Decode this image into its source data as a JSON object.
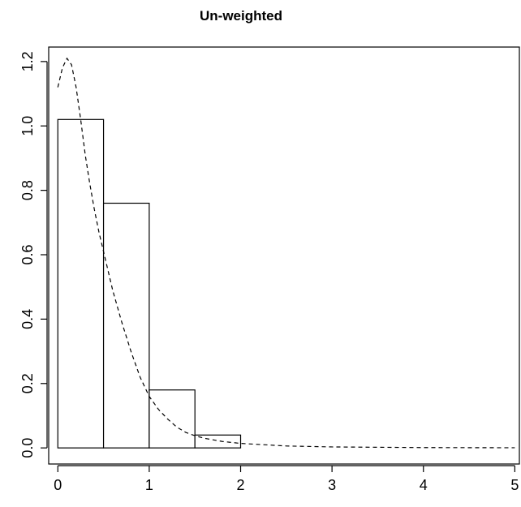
{
  "chart_data": {
    "type": "bar",
    "subtype": "histogram",
    "title": "Un-weighted",
    "xlabel": "",
    "ylabel": "",
    "xlim": [
      -0.1,
      5.05
    ],
    "ylim": [
      -0.05,
      1.245
    ],
    "x_ticks": [
      0,
      1,
      2,
      3,
      4,
      5
    ],
    "x_tick_labels": [
      "0",
      "1",
      "2",
      "3",
      "4",
      "5"
    ],
    "y_ticks": [
      0.0,
      0.2,
      0.4,
      0.6,
      0.8,
      1.0,
      1.2
    ],
    "y_tick_labels": [
      "0.0",
      "0.2",
      "0.4",
      "0.6",
      "0.8",
      "1.0",
      "1.2"
    ],
    "grid": false,
    "legend": "none",
    "bins": [
      {
        "x0": 0.0,
        "x1": 0.5,
        "density": 1.02
      },
      {
        "x0": 0.5,
        "x1": 1.0,
        "density": 0.76
      },
      {
        "x0": 1.0,
        "x1": 1.5,
        "density": 0.18
      },
      {
        "x0": 1.5,
        "x1": 2.0,
        "density": 0.04
      }
    ],
    "density_curve": {
      "style": "dashed",
      "x": [
        0.0,
        0.05,
        0.1,
        0.15,
        0.2,
        0.25,
        0.3,
        0.35,
        0.4,
        0.45,
        0.5,
        0.55,
        0.6,
        0.7,
        0.8,
        0.9,
        1.0,
        1.1,
        1.2,
        1.3,
        1.4,
        1.5,
        1.6,
        1.8,
        2.0,
        2.5,
        3.0,
        3.5,
        4.0,
        4.5,
        5.0
      ],
      "y": [
        1.12,
        1.18,
        1.21,
        1.19,
        1.12,
        1.02,
        0.91,
        0.82,
        0.74,
        0.67,
        0.61,
        0.55,
        0.49,
        0.39,
        0.3,
        0.22,
        0.16,
        0.12,
        0.09,
        0.065,
        0.048,
        0.038,
        0.03,
        0.02,
        0.014,
        0.006,
        0.003,
        0.002,
        0.001,
        0.0008,
        0.0005
      ]
    }
  }
}
